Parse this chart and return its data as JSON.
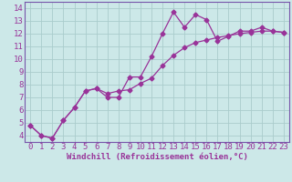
{
  "title": "",
  "xlabel": "Windchill (Refroidissement éolien,°C)",
  "ylabel": "",
  "bg_color": "#cce8e8",
  "grid_color": "#aacccc",
  "line_color": "#993399",
  "spine_color": "#7755aa",
  "x_values": [
    0,
    1,
    2,
    3,
    4,
    5,
    6,
    7,
    8,
    9,
    10,
    11,
    12,
    13,
    14,
    15,
    16,
    17,
    18,
    19,
    20,
    21,
    22,
    23
  ],
  "line1_y": [
    4.8,
    4.0,
    3.8,
    5.2,
    6.2,
    7.5,
    7.7,
    7.0,
    7.0,
    8.6,
    8.6,
    10.2,
    12.0,
    13.7,
    12.5,
    13.5,
    13.1,
    11.4,
    11.8,
    12.2,
    12.2,
    12.5,
    12.2,
    12.1
  ],
  "line2_y": [
    4.8,
    4.0,
    3.8,
    5.2,
    6.2,
    7.5,
    7.7,
    7.3,
    7.5,
    7.6,
    8.1,
    8.5,
    9.5,
    10.3,
    10.9,
    11.3,
    11.5,
    11.7,
    11.85,
    12.0,
    12.1,
    12.2,
    12.2,
    12.1
  ],
  "xlim": [
    -0.5,
    23.5
  ],
  "ylim": [
    3.5,
    14.5
  ],
  "yticks": [
    4,
    5,
    6,
    7,
    8,
    9,
    10,
    11,
    12,
    13,
    14
  ],
  "xticks": [
    0,
    1,
    2,
    3,
    4,
    5,
    6,
    7,
    8,
    9,
    10,
    11,
    12,
    13,
    14,
    15,
    16,
    17,
    18,
    19,
    20,
    21,
    22,
    23
  ],
  "xlabel_fontsize": 6.5,
  "tick_fontsize": 6.5,
  "marker_size": 2.5,
  "linewidth": 0.9
}
